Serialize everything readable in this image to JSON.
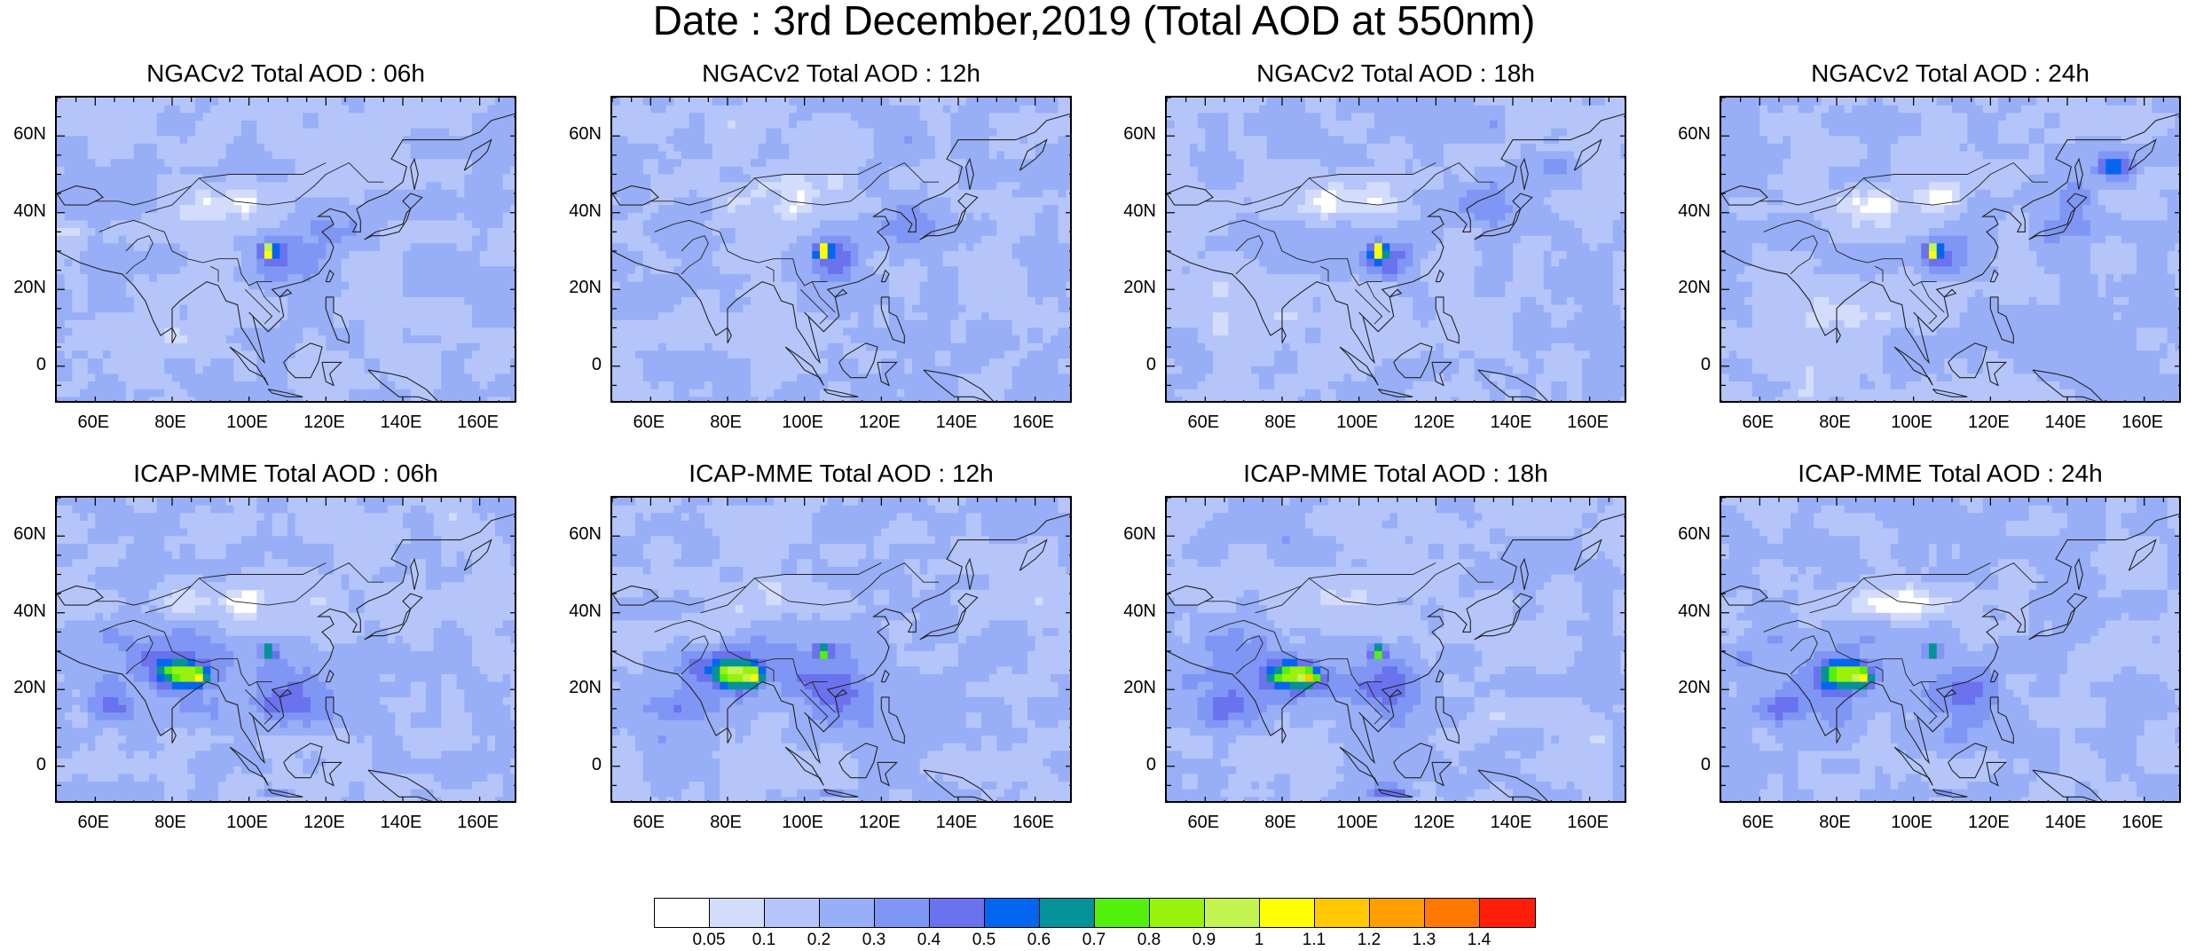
{
  "title": "Date : 3rd December,2019 (Total AOD at 550nm)",
  "x_ticks": [
    "60E",
    "80E",
    "100E",
    "120E",
    "140E",
    "160E"
  ],
  "y_ticks": [
    "60N",
    "40N",
    "20N",
    "0"
  ],
  "map_extent": {
    "lon": [
      50,
      170
    ],
    "lat": [
      -10,
      70
    ]
  },
  "panels": [
    {
      "title": "NGACv2 Total AOD : 06h",
      "model": "NGACv2",
      "lead": "06h"
    },
    {
      "title": "NGACv2 Total AOD : 12h",
      "model": "NGACv2",
      "lead": "12h"
    },
    {
      "title": "NGACv2 Total AOD : 18h",
      "model": "NGACv2",
      "lead": "18h"
    },
    {
      "title": "NGACv2 Total AOD : 24h",
      "model": "NGACv2",
      "lead": "24h"
    },
    {
      "title": "ICAP-MME Total AOD : 06h",
      "model": "ICAP-MME",
      "lead": "06h"
    },
    {
      "title": "ICAP-MME Total AOD : 12h",
      "model": "ICAP-MME",
      "lead": "12h"
    },
    {
      "title": "ICAP-MME Total AOD : 18h",
      "model": "ICAP-MME",
      "lead": "18h"
    },
    {
      "title": "ICAP-MME Total AOD : 24h",
      "model": "ICAP-MME",
      "lead": "24h"
    }
  ],
  "colorbar": {
    "labels": [
      "0.05",
      "0.1",
      "0.2",
      "0.3",
      "0.4",
      "0.5",
      "0.6",
      "0.7",
      "0.8",
      "0.9",
      "1",
      "1.1",
      "1.2",
      "1.3",
      "1.4"
    ],
    "colors": [
      "#ffffff",
      "#d4dcfc",
      "#b5c5fa",
      "#98aef6",
      "#8096f4",
      "#6a72ee",
      "#0466f0",
      "#059399",
      "#53f00d",
      "#99f20b",
      "#c3f44f",
      "#ffff00",
      "#ffc800",
      "#ffa000",
      "#ff7800",
      "#ff1e0a"
    ]
  }
}
